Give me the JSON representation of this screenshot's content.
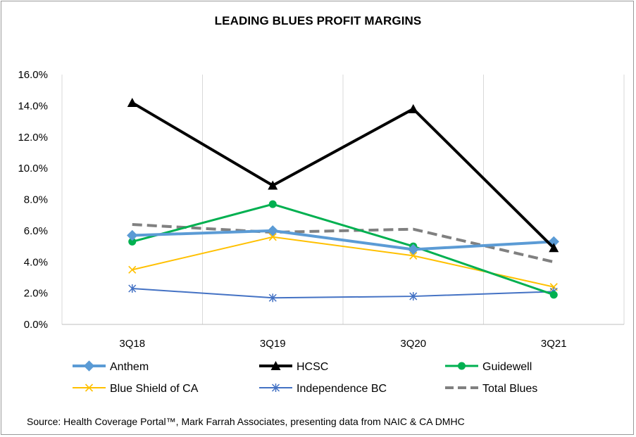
{
  "chart_data": {
    "type": "line",
    "title": "LEADING BLUES PROFIT MARGINS",
    "source": "Source: Health Coverage Portal™, Mark Farrah Associates, presenting data from NAIC & CA DMHC",
    "categories": [
      "3Q18",
      "3Q19",
      "3Q20",
      "3Q21"
    ],
    "ylim": [
      0,
      0.16
    ],
    "yticks": [
      0,
      0.02,
      0.04,
      0.06,
      0.08,
      0.1,
      0.12,
      0.14,
      0.16
    ],
    "ytick_labels": [
      "0.0%",
      "2.0%",
      "4.0%",
      "6.0%",
      "8.0%",
      "10.0%",
      "12.0%",
      "14.0%",
      "16.0%"
    ],
    "grid": "vertical",
    "legend_position": "bottom",
    "series": [
      {
        "name": "Anthem",
        "values": [
          0.057,
          0.06,
          0.048,
          0.053
        ],
        "color": "#5B9BD5",
        "marker": "diamond",
        "dash": "solid",
        "width": 4
      },
      {
        "name": "HCSC",
        "values": [
          0.142,
          0.089,
          0.138,
          0.049
        ],
        "color": "#000000",
        "marker": "triangle",
        "dash": "solid",
        "width": 4
      },
      {
        "name": "Guidewell",
        "values": [
          0.053,
          0.077,
          0.05,
          0.019
        ],
        "color": "#00B050",
        "marker": "circle",
        "dash": "solid",
        "width": 3
      },
      {
        "name": "Blue Shield of CA",
        "values": [
          0.035,
          0.056,
          0.044,
          0.024
        ],
        "color": "#FFC000",
        "marker": "x",
        "dash": "solid",
        "width": 2
      },
      {
        "name": "Independence BC",
        "values": [
          0.023,
          0.017,
          0.018,
          0.021
        ],
        "color": "#4472C4",
        "marker": "star",
        "dash": "solid",
        "width": 2
      },
      {
        "name": "Total Blues",
        "values": [
          0.064,
          0.059,
          0.061,
          0.04
        ],
        "color": "#808080",
        "marker": "none",
        "dash": "dashed",
        "width": 4
      }
    ]
  }
}
